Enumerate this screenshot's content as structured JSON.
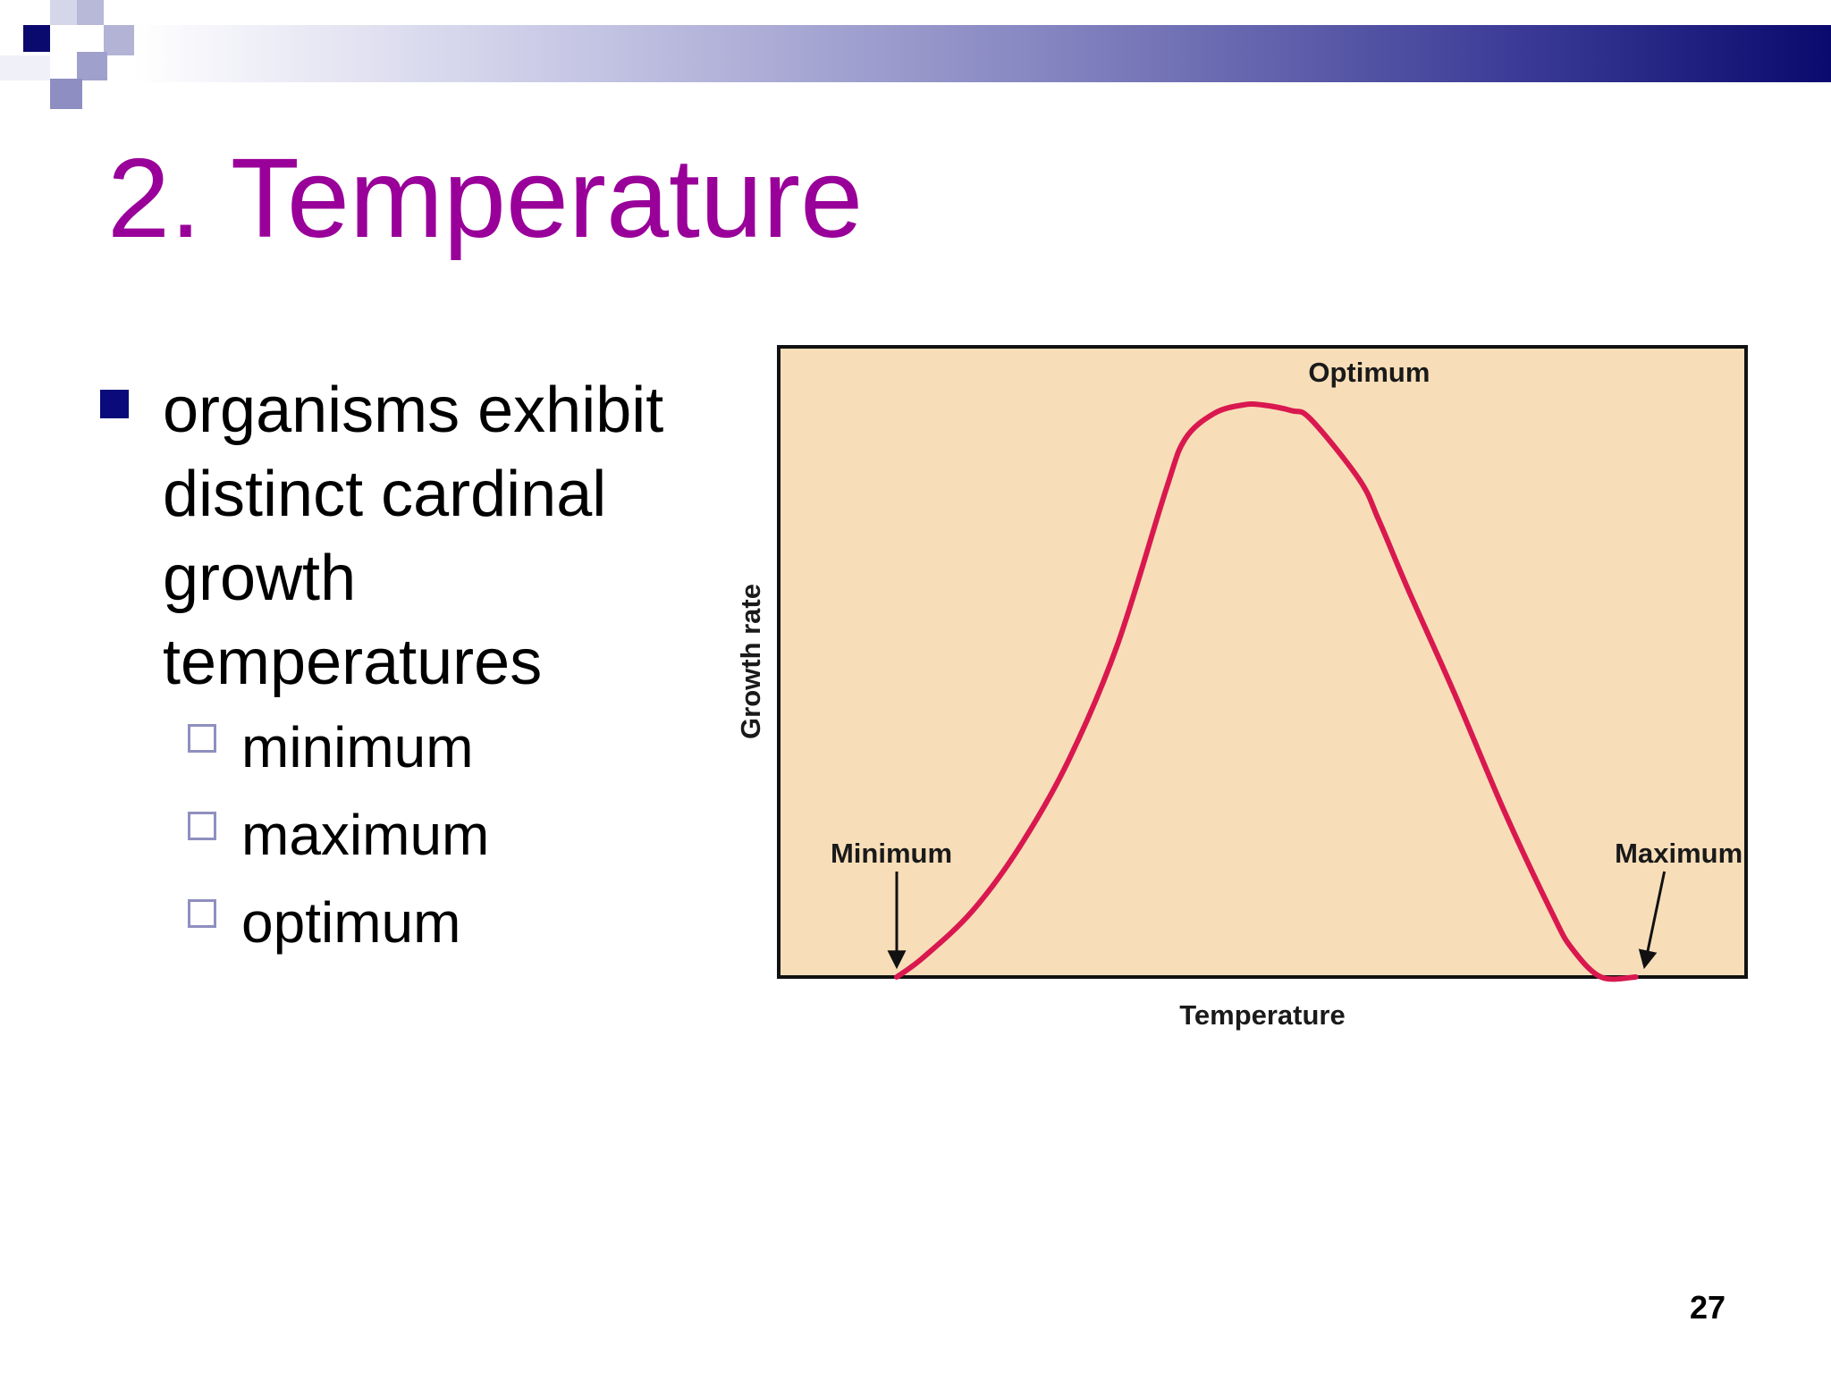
{
  "slide": {
    "title": "2. Temperature",
    "bullets": [
      {
        "text": "organisms exhibit distinct cardinal growth temperatures",
        "sub_items": [
          "minimum",
          "maximum",
          "optimum"
        ]
      }
    ],
    "page_number": "27"
  },
  "colors": {
    "title": "#990099",
    "bullet_marker": "#0a0a7a",
    "sub_marker_border": "#8f8fbf",
    "banner_end": "#0a0a6e",
    "plot_background": "#f7deb8",
    "curve": "#d9184f"
  },
  "chart_data": {
    "type": "line",
    "title": "",
    "xlabel": "Temperature",
    "ylabel": "Growth rate",
    "xlim": [
      0,
      100
    ],
    "ylim": [
      0,
      100
    ],
    "grid": false,
    "legend": "none",
    "series": [
      {
        "x": [
          12.2,
          15,
          20,
          25,
          30,
          35,
          40,
          42,
          45,
          48,
          50,
          53,
          55,
          60,
          62,
          65,
          70,
          75,
          80,
          82,
          85,
          88.6
        ],
        "y": [
          0,
          3.5,
          11.5,
          23,
          38,
          58,
          85,
          94,
          98.5,
          100,
          100,
          99,
          97.5,
          87,
          80,
          68,
          49,
          29,
          11,
          5,
          0,
          0
        ]
      }
    ],
    "annotations": [
      {
        "label": "Optimum",
        "x": 59,
        "y": 100,
        "arrow": false
      },
      {
        "label": "Minimum",
        "x": 12.2,
        "y": 0,
        "arrow": true
      },
      {
        "label": "Maximum",
        "x": 88.6,
        "y": 0,
        "arrow": true
      }
    ]
  }
}
